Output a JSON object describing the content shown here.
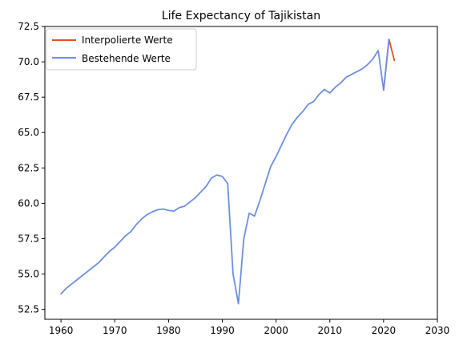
{
  "chart_data": {
    "type": "line",
    "title": "Life Expectancy of Tajikistan",
    "xlabel": "",
    "ylabel": "",
    "xlim": [
      1957,
      2030
    ],
    "ylim": [
      51.8,
      72.5
    ],
    "xticks": [
      1960,
      1970,
      1980,
      1990,
      2000,
      2010,
      2020,
      2030
    ],
    "yticks": [
      52.5,
      55.0,
      57.5,
      60.0,
      62.5,
      65.0,
      67.5,
      70.0,
      72.5
    ],
    "grid": false,
    "legend_position": "top-left",
    "series": [
      {
        "name": "Interpolierte Werte",
        "color": "#e8501f",
        "x": [
          2020,
          2021,
          2022
        ],
        "y": [
          68.0,
          71.6,
          70.1
        ]
      },
      {
        "name": "Bestehende Werte",
        "color": "#6d8fe0",
        "x": [
          1960,
          1961,
          1962,
          1963,
          1964,
          1965,
          1966,
          1967,
          1968,
          1969,
          1970,
          1971,
          1972,
          1973,
          1974,
          1975,
          1976,
          1977,
          1978,
          1979,
          1980,
          1981,
          1982,
          1983,
          1984,
          1985,
          1986,
          1987,
          1988,
          1989,
          1990,
          1991,
          1992,
          1993,
          1994,
          1995,
          1996,
          1997,
          1998,
          1999,
          2000,
          2001,
          2002,
          2003,
          2004,
          2005,
          2006,
          2007,
          2008,
          2009,
          2010,
          2011,
          2012,
          2013,
          2014,
          2015,
          2016,
          2017,
          2018,
          2019,
          2020,
          2021
        ],
        "y": [
          53.6,
          54.0,
          54.3,
          54.6,
          54.9,
          55.2,
          55.5,
          55.8,
          56.2,
          56.6,
          56.9,
          57.3,
          57.7,
          58.0,
          58.5,
          58.9,
          59.2,
          59.4,
          59.55,
          59.6,
          59.5,
          59.45,
          59.7,
          59.8,
          60.1,
          60.4,
          60.8,
          61.2,
          61.8,
          62.0,
          61.9,
          61.4,
          55.0,
          52.9,
          57.5,
          59.3,
          59.1,
          60.2,
          61.4,
          62.6,
          63.3,
          64.1,
          64.9,
          65.6,
          66.1,
          66.5,
          67.0,
          67.2,
          67.7,
          68.05,
          67.8,
          68.2,
          68.5,
          68.9,
          69.1,
          69.3,
          69.5,
          69.8,
          70.2,
          70.8,
          68.0,
          71.6
        ]
      }
    ]
  }
}
